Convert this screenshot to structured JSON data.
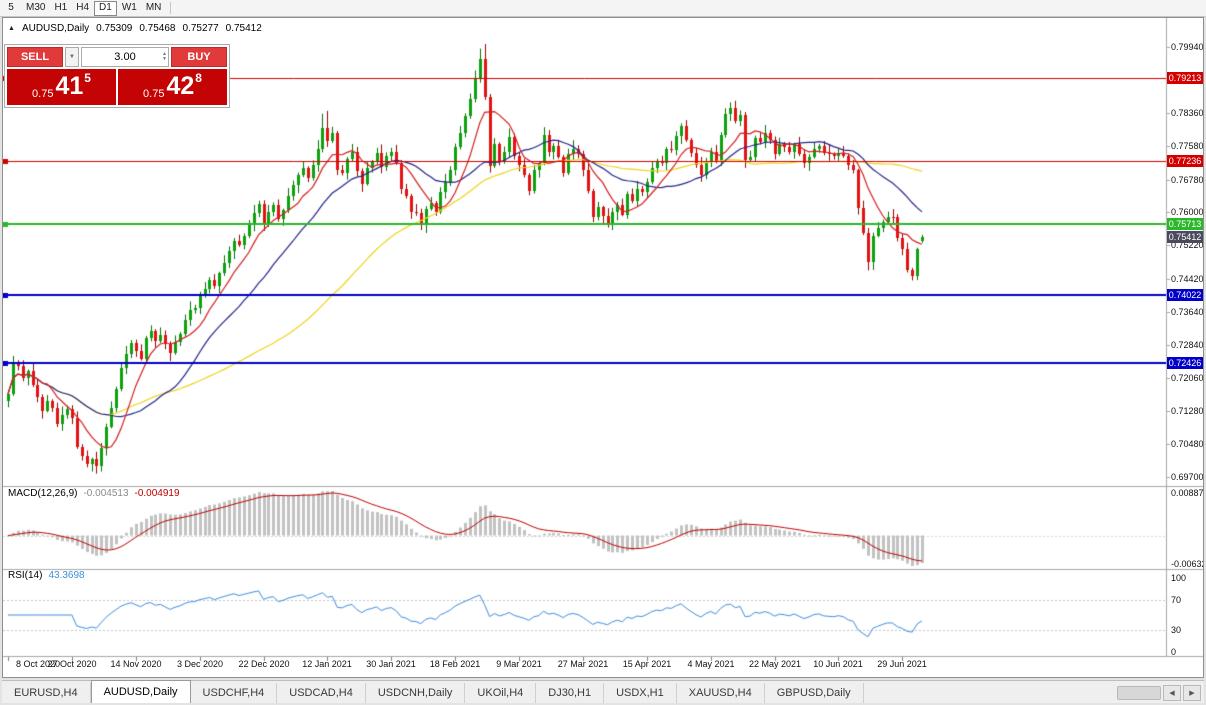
{
  "toolbar": {
    "timeframes": [
      {
        "label": "5",
        "active": false
      },
      {
        "label": "M30",
        "active": false
      },
      {
        "label": "H1",
        "active": false
      },
      {
        "label": "H4",
        "active": false
      },
      {
        "label": "D1",
        "active": true
      },
      {
        "label": "W1",
        "active": false
      },
      {
        "label": "MN",
        "active": false
      }
    ]
  },
  "chart_readout": {
    "symbol": "AUDUSD,Daily",
    "open": "0.75309",
    "high": "0.75468",
    "low": "0.75277",
    "close": "0.75412"
  },
  "one_click": {
    "sell_button": "SELL",
    "buy_button": "BUY",
    "volume": "3.00",
    "sell_price": {
      "prefix": "0.75",
      "pips": "41",
      "pipette": "5"
    },
    "buy_price": {
      "prefix": "0.75",
      "pips": "42",
      "pipette": "8"
    }
  },
  "icons": {
    "one_click_toggle": "▲",
    "volume_dropdown": "▼",
    "spin_up": "▲",
    "spin_down": "▼",
    "tab_scroll_left": "◀",
    "tab_scroll_right": "▶"
  },
  "tabs": {
    "items": [
      {
        "label": "EURUSD,H4",
        "active": false
      },
      {
        "label": "AUDUSD,Daily",
        "active": true
      },
      {
        "label": "USDCHF,H4",
        "active": false
      },
      {
        "label": "USDCAD,H4",
        "active": false
      },
      {
        "label": "USDCNH,Daily",
        "active": false
      },
      {
        "label": "UKOil,H4",
        "active": false
      },
      {
        "label": "DJ30,H1",
        "active": false
      },
      {
        "label": "USDX,H1",
        "active": false
      },
      {
        "label": "XAUUSD,H4",
        "active": false
      },
      {
        "label": "GBPUSD,Daily",
        "active": false
      }
    ]
  },
  "colors": {
    "bull": "#0EA10E",
    "bull_dark": "#077007",
    "bear": "#E31212",
    "bear_dark": "#9A0404",
    "ma_fast": "#D42020",
    "ma_mid": "#26268C",
    "ma_slow": "#EFD51E",
    "macd_hist": "#C2C2C2",
    "macd_signal": "#C00000",
    "rsi_line": "#3E8EDE",
    "buy_sell_red": "#E03A3A",
    "price_panel_red": "#C40404"
  },
  "chart_data": {
    "type": "candlestick",
    "title": "AUDUSD,Daily",
    "symbol": "AUDUSD",
    "timeframe": "Daily",
    "ohlc_current": {
      "open": 0.75309,
      "high": 0.75468,
      "low": 0.75277,
      "close": 0.75412
    },
    "price_scale": 1e-05,
    "candles": [
      [
        71500,
        71770,
        71360,
        71680
      ],
      [
        71680,
        72580,
        71630,
        72420
      ],
      [
        72420,
        72480,
        72240,
        72350
      ],
      [
        72350,
        72480,
        71980,
        72050
      ],
      [
        72050,
        72260,
        71880,
        72220
      ],
      [
        72220,
        72400,
        71840,
        71900
      ],
      [
        71900,
        72010,
        71480,
        71600
      ],
      [
        71600,
        71670,
        71090,
        71280
      ],
      [
        71280,
        71650,
        71240,
        71500
      ],
      [
        71500,
        71550,
        71250,
        71350
      ],
      [
        71350,
        71470,
        70890,
        70950
      ],
      [
        70950,
        71380,
        70800,
        71180
      ],
      [
        71180,
        71400,
        71090,
        71320
      ],
      [
        71320,
        71410,
        70960,
        71100
      ],
      [
        71100,
        71260,
        70370,
        70420
      ],
      [
        70420,
        70480,
        70090,
        70200
      ],
      [
        70200,
        70330,
        69930,
        70000
      ],
      [
        70000,
        70160,
        69830,
        70120
      ],
      [
        70120,
        70300,
        69780,
        69950
      ],
      [
        69950,
        70510,
        69830,
        70400
      ],
      [
        70400,
        70970,
        70210,
        70900
      ],
      [
        70900,
        71500,
        70860,
        71350
      ],
      [
        71350,
        71850,
        71250,
        71800
      ],
      [
        71800,
        72420,
        71740,
        72300
      ],
      [
        72300,
        72820,
        72150,
        72620
      ],
      [
        72620,
        72960,
        72530,
        72880
      ],
      [
        72880,
        72970,
        72560,
        72700
      ],
      [
        72700,
        72860,
        72470,
        72520
      ],
      [
        72520,
        73060,
        72410,
        73000
      ],
      [
        73000,
        73310,
        72930,
        73180
      ],
      [
        73180,
        73220,
        72780,
        72950
      ],
      [
        72950,
        73260,
        72890,
        73080
      ],
      [
        73080,
        73190,
        72740,
        72860
      ],
      [
        72860,
        72930,
        72460,
        72650
      ],
      [
        72650,
        73070,
        72610,
        72920
      ],
      [
        72920,
        73150,
        72820,
        73100
      ],
      [
        73100,
        73570,
        73040,
        73450
      ],
      [
        73450,
        73880,
        73300,
        73680
      ],
      [
        73680,
        73800,
        73590,
        73720
      ],
      [
        73720,
        74110,
        73580,
        74020
      ],
      [
        74020,
        74340,
        73970,
        74180
      ],
      [
        74180,
        74460,
        74070,
        74400
      ],
      [
        74400,
        74530,
        74180,
        74250
      ],
      [
        74250,
        74590,
        74080,
        74550
      ],
      [
        74550,
        74980,
        74490,
        74800
      ],
      [
        74800,
        75190,
        74680,
        75080
      ],
      [
        75080,
        75390,
        74890,
        75320
      ],
      [
        75320,
        75470,
        75180,
        75220
      ],
      [
        75220,
        75500,
        75120,
        75450
      ],
      [
        75450,
        75820,
        75390,
        75700
      ],
      [
        75700,
        76180,
        75550,
        75980
      ],
      [
        75980,
        76280,
        75890,
        76200
      ],
      [
        76200,
        76290,
        75560,
        75700
      ],
      [
        75700,
        76180,
        75650,
        76020
      ],
      [
        76020,
        76240,
        75910,
        76180
      ],
      [
        76180,
        76310,
        75780,
        75850
      ],
      [
        75850,
        76090,
        75680,
        76050
      ],
      [
        76050,
        76580,
        75990,
        76400
      ],
      [
        76400,
        76760,
        76280,
        76650
      ],
      [
        76650,
        76950,
        76460,
        76880
      ],
      [
        76880,
        77200,
        76840,
        77050
      ],
      [
        77050,
        77100,
        76720,
        76820
      ],
      [
        76820,
        77240,
        76760,
        77120
      ],
      [
        77120,
        77720,
        76970,
        77520
      ],
      [
        77520,
        78350,
        77430,
        78000
      ],
      [
        78000,
        78420,
        77560,
        77700
      ],
      [
        77700,
        78040,
        77650,
        77880
      ],
      [
        77880,
        77940,
        76890,
        77000
      ],
      [
        77000,
        77130,
        76880,
        76950
      ],
      [
        76950,
        77320,
        76780,
        77280
      ],
      [
        77280,
        77630,
        77220,
        77450
      ],
      [
        77450,
        77560,
        76860,
        76980
      ],
      [
        76980,
        77050,
        76490,
        76680
      ],
      [
        76680,
        77200,
        76640,
        77050
      ],
      [
        77050,
        77250,
        76950,
        77200
      ],
      [
        77200,
        77540,
        77140,
        77420
      ],
      [
        77420,
        77620,
        76930,
        77080
      ],
      [
        77080,
        77430,
        76990,
        77350
      ],
      [
        77350,
        77540,
        77210,
        77450
      ],
      [
        77450,
        77610,
        77130,
        77180
      ],
      [
        77180,
        77240,
        76440,
        76550
      ],
      [
        76550,
        76680,
        76330,
        76400
      ],
      [
        76400,
        76440,
        75850,
        76020
      ],
      [
        76020,
        76200,
        75920,
        75980
      ],
      [
        75980,
        76090,
        75580,
        75700
      ],
      [
        75700,
        76150,
        75510,
        76080
      ],
      [
        76080,
        76370,
        76040,
        76220
      ],
      [
        76220,
        76270,
        75920,
        76020
      ],
      [
        76020,
        76600,
        75960,
        76480
      ],
      [
        76480,
        76920,
        76330,
        76720
      ],
      [
        76720,
        77100,
        76630,
        77020
      ],
      [
        77020,
        77640,
        76880,
        77550
      ],
      [
        77550,
        78060,
        77500,
        77900
      ],
      [
        77900,
        78360,
        77790,
        78300
      ],
      [
        78300,
        78830,
        78230,
        78700
      ],
      [
        78700,
        79380,
        78620,
        79200
      ],
      [
        79200,
        79900,
        79090,
        79650
      ],
      [
        79650,
        80010,
        78680,
        78750
      ],
      [
        78750,
        78820,
        76950,
        77100
      ],
      [
        77100,
        77770,
        77060,
        77620
      ],
      [
        77620,
        77670,
        77120,
        77220
      ],
      [
        77220,
        77570,
        77160,
        77450
      ],
      [
        77450,
        78000,
        77300,
        77800
      ],
      [
        77800,
        77880,
        77260,
        77350
      ],
      [
        77350,
        77440,
        76980,
        77120
      ],
      [
        77120,
        77280,
        76830,
        76880
      ],
      [
        76880,
        76940,
        76410,
        76520
      ],
      [
        76520,
        77130,
        76450,
        77000
      ],
      [
        77000,
        77220,
        76830,
        77180
      ],
      [
        77180,
        78030,
        77120,
        77850
      ],
      [
        77850,
        77960,
        77330,
        77450
      ],
      [
        77450,
        77650,
        77260,
        77580
      ],
      [
        77580,
        77730,
        77280,
        77320
      ],
      [
        77320,
        77370,
        76850,
        76950
      ],
      [
        76950,
        77520,
        76890,
        77400
      ],
      [
        77400,
        77720,
        77250,
        77520
      ],
      [
        77520,
        77600,
        77290,
        77380
      ],
      [
        77380,
        77470,
        76860,
        77000
      ],
      [
        77000,
        77160,
        76450,
        76500
      ],
      [
        76500,
        76560,
        75770,
        75880
      ],
      [
        75880,
        76250,
        75810,
        76120
      ],
      [
        76120,
        76160,
        75750,
        75920
      ],
      [
        75920,
        76100,
        75640,
        75700
      ],
      [
        75700,
        76110,
        75580,
        76000
      ],
      [
        76000,
        76250,
        75810,
        76180
      ],
      [
        76180,
        76330,
        75910,
        75950
      ],
      [
        75950,
        76500,
        75850,
        76450
      ],
      [
        76450,
        76570,
        76220,
        76280
      ],
      [
        76280,
        76750,
        76130,
        76550
      ],
      [
        76550,
        76630,
        76390,
        76480
      ],
      [
        76480,
        76810,
        76340,
        76720
      ],
      [
        76720,
        77210,
        76670,
        77050
      ],
      [
        77050,
        77280,
        76940,
        77220
      ],
      [
        77220,
        77350,
        77110,
        77180
      ],
      [
        77180,
        77560,
        77010,
        77520
      ],
      [
        77520,
        77700,
        77420,
        77480
      ],
      [
        77480,
        77930,
        77360,
        77820
      ],
      [
        77820,
        78120,
        77630,
        78050
      ],
      [
        78050,
        78200,
        77680,
        77720
      ],
      [
        77720,
        77770,
        77320,
        77420
      ],
      [
        77420,
        77540,
        77060,
        77120
      ],
      [
        77120,
        77320,
        76730,
        76880
      ],
      [
        76880,
        77300,
        76790,
        77220
      ],
      [
        77220,
        77540,
        77080,
        77450
      ],
      [
        77450,
        77610,
        77170,
        77220
      ],
      [
        77220,
        77910,
        77110,
        77850
      ],
      [
        77850,
        78480,
        77780,
        78350
      ],
      [
        78350,
        78620,
        78180,
        78480
      ],
      [
        78480,
        78660,
        78120,
        78180
      ],
      [
        78180,
        78430,
        78060,
        78320
      ],
      [
        78320,
        78390,
        77060,
        77250
      ],
      [
        77250,
        77470,
        77210,
        77320
      ],
      [
        77320,
        77830,
        77220,
        77780
      ],
      [
        77780,
        77900,
        77620,
        77680
      ],
      [
        77680,
        78080,
        77530,
        77880
      ],
      [
        77880,
        77960,
        77630,
        77720
      ],
      [
        77720,
        77810,
        77260,
        77400
      ],
      [
        77400,
        77780,
        77350,
        77620
      ],
      [
        77620,
        77680,
        77440,
        77550
      ],
      [
        77550,
        77680,
        77380,
        77450
      ],
      [
        77450,
        77660,
        77280,
        77620
      ],
      [
        77620,
        77800,
        77340,
        77400
      ],
      [
        77400,
        77510,
        77060,
        77180
      ],
      [
        77180,
        77390,
        76990,
        77320
      ],
      [
        77320,
        77670,
        77280,
        77520
      ],
      [
        77520,
        77630,
        77420,
        77580
      ],
      [
        77580,
        77700,
        77360,
        77420
      ],
      [
        77420,
        77620,
        77230,
        77380
      ],
      [
        77380,
        77430,
        77260,
        77350
      ],
      [
        77350,
        77510,
        77210,
        77420
      ],
      [
        77420,
        77580,
        77300,
        77350
      ],
      [
        77350,
        77410,
        77010,
        77120
      ],
      [
        77120,
        77250,
        76930,
        77000
      ],
      [
        77000,
        77040,
        75950,
        76100
      ],
      [
        76100,
        76280,
        75460,
        75520
      ],
      [
        75520,
        75630,
        74620,
        74820
      ],
      [
        74820,
        75520,
        74630,
        75450
      ],
      [
        75450,
        75770,
        75410,
        75620
      ],
      [
        75620,
        75830,
        75530,
        75780
      ],
      [
        75780,
        76020,
        75720,
        75900
      ],
      [
        75900,
        76080,
        75730,
        75880
      ],
      [
        75880,
        75960,
        75310,
        75400
      ],
      [
        75400,
        75490,
        74980,
        75120
      ],
      [
        75120,
        75280,
        74570,
        74620
      ],
      [
        74620,
        74680,
        74380,
        74480
      ],
      [
        74480,
        75160,
        74390,
        75120
      ],
      [
        75309,
        75468,
        75277,
        75412
      ]
    ],
    "y_axis_labels": [
      "0.79940",
      "0.78360",
      "0.77580",
      "0.76780",
      "0.76000",
      "0.75220",
      "0.74420",
      "0.73640",
      "0.72840",
      "0.72060",
      "0.71280",
      "0.70480",
      "0.69700"
    ],
    "x_axis_labels": [
      {
        "text": "8 Oct 2020",
        "bar": 0
      },
      {
        "text": "27 Oct 2020",
        "bar": 13
      },
      {
        "text": "14 Nov 2020",
        "bar": 26
      },
      {
        "text": "3 Dec 2020",
        "bar": 39
      },
      {
        "text": "22 Dec 2020",
        "bar": 52
      },
      {
        "text": "12 Jan 2021",
        "bar": 65
      },
      {
        "text": "30 Jan 2021",
        "bar": 78
      },
      {
        "text": "18 Feb 2021",
        "bar": 91
      },
      {
        "text": "9 Mar 2021",
        "bar": 104
      },
      {
        "text": "27 Mar 2021",
        "bar": 117
      },
      {
        "text": "15 Apr 2021",
        "bar": 130
      },
      {
        "text": "4 May 2021",
        "bar": 143
      },
      {
        "text": "22 May 2021",
        "bar": 156
      },
      {
        "text": "10 Jun 2021",
        "bar": 169
      },
      {
        "text": "29 Jun 2021",
        "bar": 182
      }
    ],
    "horizontal_lines": [
      {
        "price": 0.79213,
        "label": "0.79213",
        "color": "#D40000",
        "width": 1
      },
      {
        "price": 0.77236,
        "label": "0.77236",
        "color": "#D40000",
        "width": 1
      },
      {
        "price": 0.75713,
        "label": "0.75713",
        "color": "#2AB82A",
        "width": 2
      },
      {
        "price": 0.74022,
        "label": "0.74022",
        "color": "#0000C8",
        "width": 2
      },
      {
        "price": 0.72426,
        "label": "0.72426",
        "color": "#0000C8",
        "width": 2
      }
    ],
    "current_price_label": {
      "text": "0.75412",
      "color": "#4A4A5E"
    },
    "moving_averages": [
      {
        "period": 8,
        "color": "#D42020"
      },
      {
        "period": 21,
        "color": "#26268C"
      },
      {
        "period": 55,
        "color": "#EFD51E"
      }
    ],
    "macd": {
      "label": "MACD(12,26,9)",
      "fast": 12,
      "slow": 26,
      "signal": 9,
      "value_main": "-0.004513",
      "value_signal": "-0.004919",
      "axis_top": "0.00887",
      "axis_bottom": "-0.00632"
    },
    "rsi": {
      "label": "RSI(14)",
      "period": 14,
      "value": "43.3698",
      "axis_labels": [
        "100",
        "70",
        "30",
        "0"
      ],
      "levels": [
        70,
        30
      ]
    }
  }
}
